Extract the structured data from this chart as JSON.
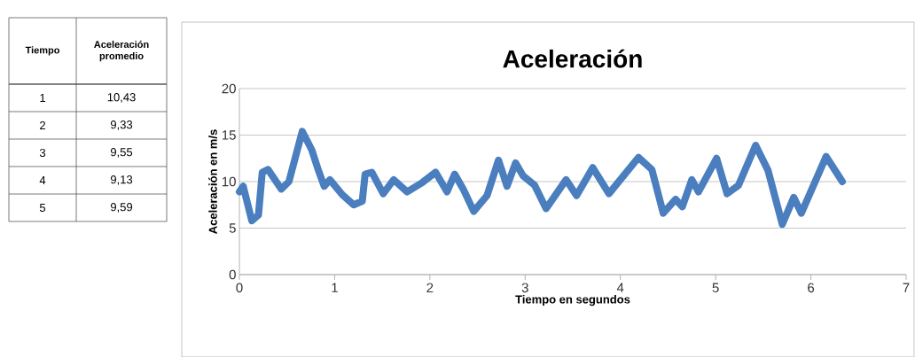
{
  "chart_data": {
    "type": "line",
    "title": "Aceleración",
    "xlabel": "Tiempo en segundos",
    "ylabel": "Aceleración en m/s",
    "annotations": [
      "Tiempo",
      "Aceleración promedio",
      "1",
      "10,43",
      "2",
      "9,33",
      "3",
      "9,55",
      "4",
      "9,13",
      "5",
      "9,59"
    ],
    "x": [
      0,
      0.04,
      0.13,
      0.2,
      0.24,
      0.3,
      0.44,
      0.52,
      0.66,
      0.76,
      0.83,
      0.89,
      0.95,
      1.08,
      1.2,
      1.29,
      1.32,
      1.39,
      1.51,
      1.62,
      1.76,
      1.92,
      2.06,
      2.18,
      2.26,
      2.35,
      2.46,
      2.6,
      2.72,
      2.81,
      2.9,
      2.98,
      3.1,
      3.22,
      3.43,
      3.54,
      3.71,
      3.88,
      4.19,
      4.33,
      4.45,
      4.58,
      4.65,
      4.75,
      4.82,
      5.01,
      5.12,
      5.24,
      5.42,
      5.55,
      5.7,
      5.82,
      5.9,
      6.16,
      6.33
    ],
    "series": [
      {
        "color": "#4a7ebf",
        "values": [
          8.9,
          9.5,
          5.8,
          6.4,
          11,
          11.3,
          9.2,
          10,
          15.4,
          13.4,
          11.2,
          9.5,
          10.2,
          8.6,
          7.5,
          7.9,
          10.8,
          11,
          8.7,
          10.2,
          8.9,
          9.9,
          11,
          8.9,
          10.8,
          9.2,
          6.8,
          8.5,
          12.3,
          9.5,
          12,
          10.6,
          9.6,
          7.1,
          10.2,
          8.5,
          11.5,
          8.7,
          12.6,
          11.3,
          6.6,
          8.1,
          7.3,
          10.2,
          8.9,
          12.5,
          8.7,
          9.6,
          13.9,
          11.2,
          5.4,
          8.3,
          6.6,
          12.7,
          10
        ]
      }
    ],
    "xlim": [
      0,
      7
    ],
    "xticks": [
      0,
      1,
      2,
      3,
      4,
      5,
      6,
      7
    ],
    "ylim": [
      0,
      20
    ],
    "yticks": [
      0,
      5,
      10,
      15,
      20
    ],
    "grid": "y"
  }
}
